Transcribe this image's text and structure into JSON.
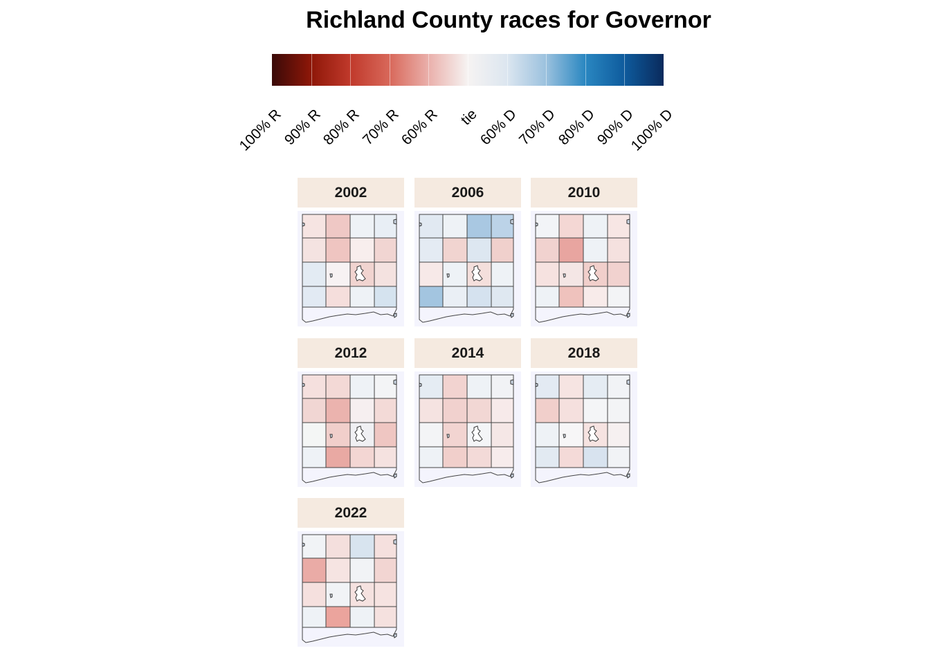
{
  "title": "Richland County races for Governor",
  "legend": {
    "labels": [
      "100% R",
      "90% R",
      "80% R",
      "70% R",
      "60% R",
      "tie",
      "60% D",
      "70% D",
      "80% D",
      "90% D",
      "100% D"
    ],
    "colors": {
      "r100": "#3a0a08",
      "r90": "#8e1708",
      "r80": "#c0392b",
      "r70": "#d8685a",
      "r60": "#eab0ab",
      "tie": "#f6f3f2",
      "d60": "#dce6f0",
      "d70": "#9bc1de",
      "d80": "#2a87c1",
      "d90": "#0e5b9d",
      "d100": "#0a2a5c"
    }
  },
  "panels": [
    {
      "year": "2002",
      "grid": [
        [
          "#f6e4e2",
          "#efc8c5",
          "#eef2f6",
          "#e8eef5"
        ],
        [
          "#f4e3e1",
          "#efc5c1",
          "#f8eeed",
          "#f1d5d2"
        ],
        [
          "#e3ebf3",
          "#f7f2f3",
          "#f1d4d0",
          "#f4e2e0"
        ],
        [
          "#e2eaf3",
          "#f5dedc",
          "#eef2f6",
          "#d5e3ef"
        ]
      ]
    },
    {
      "year": "2006",
      "grid": [
        [
          "#e1e9f2",
          "#eef2f6",
          "#a9c8e2",
          "#bcd3e8"
        ],
        [
          "#e4ebf3",
          "#f1d4d0",
          "#dde7f1",
          "#f0d0cc"
        ],
        [
          "#f7e9e8",
          "#eef2f6",
          "#f4dfdc",
          "#eef2f6"
        ],
        [
          "#a3c5e0",
          "#eaeff5",
          "#d5e2ef",
          "#dfe8f1"
        ]
      ]
    },
    {
      "year": "2010",
      "grid": [
        [
          "#f2f4f7",
          "#f4d7d4",
          "#eef2f6",
          "#f7e6e4"
        ],
        [
          "#f1d2cf",
          "#e8a5a0",
          "#eef2f6",
          "#f5e1df"
        ],
        [
          "#f6e2e0",
          "#f4e6e5",
          "#f1cfcb",
          "#f1d2cf"
        ],
        [
          "#eef2f6",
          "#efc2bd",
          "#f8ebea",
          "#f3f4f6"
        ]
      ]
    },
    {
      "year": "2012",
      "grid": [
        [
          "#f5e0de",
          "#f3d9d6",
          "#eef2f6",
          "#f3f4f6"
        ],
        [
          "#f1d6d3",
          "#ebb3ae",
          "#f6eff0",
          "#f3dad7"
        ],
        [
          "#f4f6f5",
          "#f1cfcb",
          "#f0f0f3",
          "#efc6c2"
        ],
        [
          "#eef2f6",
          "#e9a9a3",
          "#f3d6d3",
          "#f5e2e0"
        ]
      ]
    },
    {
      "year": "2014",
      "grid": [
        [
          "#e5ecf3",
          "#f2d3d0",
          "#eef2f6",
          "#f1f2f5"
        ],
        [
          "#f5e3e1",
          "#f1d1ce",
          "#f2d7d4",
          "#f7eaea"
        ],
        [
          "#f3f4f6",
          "#f2d4d1",
          "#f4f5f7",
          "#f5e7e6"
        ],
        [
          "#eef2f6",
          "#f1cfcb",
          "#f3dad8",
          "#f7ecec"
        ]
      ]
    },
    {
      "year": "2018",
      "grid": [
        [
          "#e3eaf3",
          "#f6e4e2",
          "#e5ecf3",
          "#f1f3f6"
        ],
        [
          "#f1cfcb",
          "#f5e0de",
          "#f4f5f7",
          "#f3f4f6"
        ],
        [
          "#eef2f6",
          "#f7f6f7",
          "#f6e3e1",
          "#f6f0f0"
        ],
        [
          "#e2eaf2",
          "#f4dad8",
          "#d8e3ef",
          "#f1f3f6"
        ]
      ]
    },
    {
      "year": "2022",
      "grid": [
        [
          "#f1f3f6",
          "#f4dfdd",
          "#d8e4ef",
          "#f5e0de"
        ],
        [
          "#eaaba6",
          "#f6e4e2",
          "#f1f3f6",
          "#f2d5d2"
        ],
        [
          "#f5e0de",
          "#f1f3f6",
          "#f5e2e0",
          "#f6e3e1"
        ],
        [
          "#eef2f6",
          "#eba49d",
          "#eef2f6",
          "#f5e1df"
        ]
      ]
    }
  ]
}
